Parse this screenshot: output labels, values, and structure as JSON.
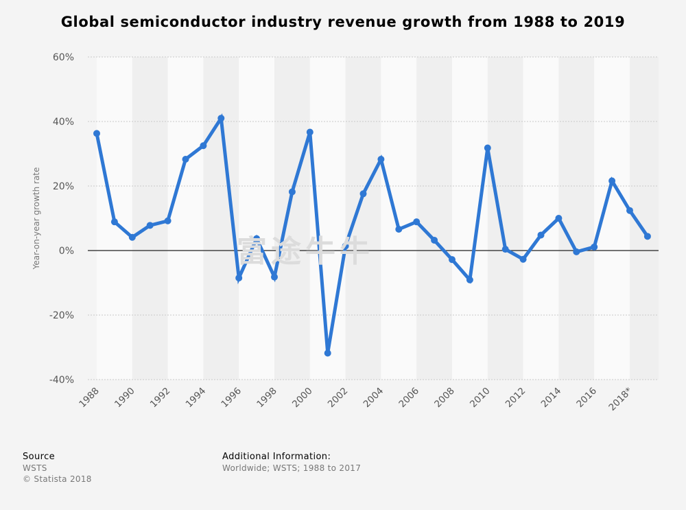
{
  "chart_data": {
    "type": "line",
    "title": "Global semiconductor industry revenue growth from 1988 to 2019",
    "ylabel": "Year-on-year growth rate",
    "xlabel": "",
    "ylim": [
      -40,
      60
    ],
    "yticks": [
      60,
      40,
      20,
      0,
      -20,
      -40
    ],
    "ytick_labels": [
      "60%",
      "40%",
      "20%",
      "0%",
      "-20%",
      "-40%"
    ],
    "x": [
      "1988",
      "1989",
      "1990",
      "1991",
      "1992",
      "1993",
      "1994",
      "1995",
      "1996",
      "1997",
      "1998",
      "1999",
      "2000",
      "2001",
      "2002",
      "2003",
      "2004",
      "2005",
      "2006",
      "2007",
      "2008",
      "2009",
      "2010",
      "2011",
      "2012",
      "2013",
      "2014",
      "2015",
      "2016",
      "2017",
      "2018*",
      "2019*"
    ],
    "xtick_labels": [
      "1988",
      "",
      "1990",
      "",
      "1992",
      "",
      "1994",
      "",
      "1996",
      "",
      "1998",
      "",
      "2000",
      "",
      "2002",
      "",
      "2004",
      "",
      "2006",
      "",
      "2008",
      "",
      "2010",
      "",
      "2012",
      "",
      "2014",
      "",
      "2016",
      "",
      "2018*",
      ""
    ],
    "series": [
      {
        "name": "Growth rate",
        "color": "#2f78d4",
        "values": [
          36.3,
          8.9,
          4.1,
          7.8,
          9.2,
          28.3,
          32.5,
          41.0,
          -8.5,
          3.7,
          -8.2,
          18.2,
          36.7,
          -31.8,
          1.4,
          17.6,
          28.3,
          6.6,
          8.9,
          3.2,
          -2.8,
          -9.1,
          31.8,
          0.4,
          -2.7,
          4.8,
          10.0,
          -0.4,
          1.1,
          21.6,
          12.4,
          4.4
        ]
      }
    ],
    "grid": true
  },
  "watermark": "富途牛牛",
  "footer": {
    "source_heading": "Source",
    "source_name": "WSTS",
    "copyright": "© Statista 2018",
    "info_heading": "Additional Information:",
    "info_text": "Worldwide; WSTS; 1988 to 2017"
  }
}
